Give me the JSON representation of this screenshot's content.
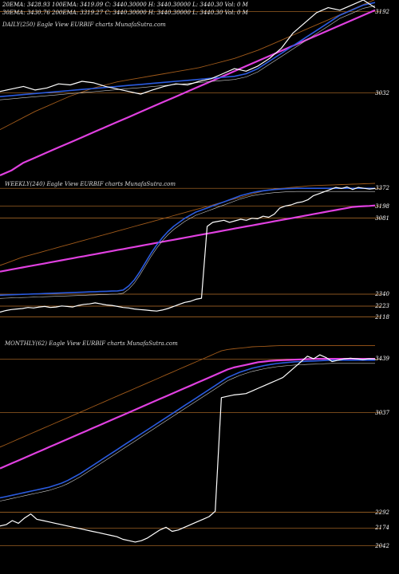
{
  "header": {
    "row1": "20EMA: 3428.93     100EMA: 3419.09     C: 3440.30000 H: 3440.30000 L: 3440.30 Vol: 0  M",
    "row2": "30EMA: 3430.76     200EMA: 3319.27     C: 3440.30000 H: 3440.30000 L: 3440.30 Vol: 0  M"
  },
  "colors": {
    "background": "#000000",
    "level_line": "#b8722a",
    "price_line": "#ffffff",
    "ema_pink": "#e040e0",
    "ema_blue": "#2a5be0",
    "ema_orange": "#a05a1a"
  },
  "chart_data": [
    {
      "type": "line",
      "panel": "daily",
      "title": "DAILY(250) Eagle  View  EURBIF charts MunafaSutra.com",
      "levels": [
        3192,
        3032
      ],
      "series": [
        {
          "role": "price",
          "values": [
            3035,
            3040,
            3045,
            3038,
            3042,
            3050,
            3048,
            3055,
            3052,
            3045,
            3040,
            3035,
            3030,
            3038,
            3045,
            3050,
            3048,
            3055,
            3060,
            3070,
            3080,
            3075,
            3085,
            3100,
            3120,
            3150,
            3170,
            3190,
            3200,
            3195,
            3205,
            3215,
            3200
          ]
        },
        {
          "role": "ema-pink",
          "values": [
            2870,
            2880,
            2895,
            2905,
            2915,
            2925,
            2935,
            2945,
            2955,
            2965,
            2975,
            2985,
            2995,
            3005,
            3015,
            3025,
            3035,
            3045,
            3055,
            3065,
            3075,
            3085,
            3095,
            3105,
            3115,
            3125,
            3135,
            3145,
            3155,
            3165,
            3175,
            3185,
            3195
          ]
        },
        {
          "role": "ema-blue",
          "values": [
            3025,
            3027,
            3029,
            3031,
            3033,
            3035,
            3037,
            3039,
            3041,
            3043,
            3045,
            3047,
            3049,
            3051,
            3053,
            3055,
            3057,
            3059,
            3061,
            3063,
            3065,
            3070,
            3080,
            3095,
            3110,
            3125,
            3140,
            3155,
            3170,
            3185,
            3195,
            3205,
            3210
          ]
        },
        {
          "role": "ema-orange",
          "values": [
            2960,
            2972,
            2984,
            2996,
            3006,
            3016,
            3026,
            3034,
            3042,
            3048,
            3054,
            3058,
            3062,
            3066,
            3070,
            3074,
            3078,
            3082,
            3088,
            3094,
            3100,
            3108,
            3116,
            3126,
            3136,
            3146,
            3156,
            3166,
            3176,
            3186,
            3196,
            3206,
            3216
          ]
        }
      ]
    },
    {
      "type": "line",
      "panel": "weekly",
      "title": "WEEKLY(240) Eagle  View  EURBIF charts MunafaSutra.com",
      "levels": [
        3372,
        3198,
        3081,
        2340,
        2223,
        2118
      ],
      "series": [
        {
          "role": "price",
          "values": [
            2165,
            2180,
            2190,
            2195,
            2200,
            2210,
            2205,
            2215,
            2220,
            2210,
            2215,
            2225,
            2220,
            2215,
            2230,
            2240,
            2245,
            2255,
            2245,
            2235,
            2230,
            2220,
            2210,
            2205,
            2195,
            2190,
            2185,
            2180,
            2175,
            2185,
            2200,
            2220,
            2240,
            2260,
            2270,
            2290,
            2300,
            3000,
            3040,
            3050,
            3060,
            3040,
            3055,
            3070,
            3060,
            3080,
            3075,
            3100,
            3090,
            3120,
            3180,
            3200,
            3210,
            3230,
            3240,
            3260,
            3300,
            3320,
            3340,
            3360,
            3380,
            3370,
            3385,
            3360,
            3380,
            3372,
            3365,
            3370
          ]
        },
        {
          "role": "ema-pink",
          "values": [
            2560,
            2570,
            2580,
            2590,
            2600,
            2610,
            2620,
            2630,
            2640,
            2650,
            2660,
            2670,
            2680,
            2690,
            2700,
            2710,
            2720,
            2730,
            2740,
            2750,
            2760,
            2770,
            2780,
            2790,
            2800,
            2810,
            2820,
            2830,
            2840,
            2850,
            2860,
            2870,
            2880,
            2890,
            2900,
            2910,
            2920,
            2930,
            2940,
            2950,
            2960,
            2970,
            2980,
            2990,
            3000,
            3010,
            3020,
            3030,
            3040,
            3050,
            3060,
            3070,
            3080,
            3090,
            3100,
            3110,
            3120,
            3130,
            3140,
            3150,
            3160,
            3170,
            3180,
            3190,
            3195,
            3198,
            3200,
            3205
          ]
        },
        {
          "role": "ema-blue",
          "values": [
            2330,
            2332,
            2334,
            2336,
            2338,
            2340,
            2342,
            2344,
            2346,
            2348,
            2350,
            2352,
            2354,
            2356,
            2358,
            2360,
            2362,
            2364,
            2366,
            2368,
            2370,
            2372,
            2380,
            2420,
            2480,
            2560,
            2650,
            2740,
            2820,
            2890,
            2950,
            3000,
            3040,
            3080,
            3110,
            3140,
            3160,
            3180,
            3200,
            3220,
            3240,
            3260,
            3280,
            3300,
            3315,
            3330,
            3340,
            3348,
            3355,
            3360,
            3364,
            3368,
            3370,
            3372,
            3372,
            3372,
            3372,
            3372,
            3372,
            3372,
            3372,
            3372,
            3372,
            3372,
            3372,
            3372,
            3372,
            3372
          ]
        },
        {
          "role": "ema-orange",
          "values": [
            2620,
            2640,
            2660,
            2680,
            2700,
            2715,
            2730,
            2745,
            2760,
            2775,
            2790,
            2805,
            2820,
            2835,
            2850,
            2865,
            2880,
            2895,
            2910,
            2925,
            2940,
            2955,
            2970,
            2985,
            3000,
            3015,
            3030,
            3045,
            3060,
            3075,
            3090,
            3105,
            3120,
            3135,
            3150,
            3165,
            3180,
            3195,
            3210,
            3225,
            3240,
            3255,
            3270,
            3285,
            3300,
            3315,
            3330,
            3345,
            3355,
            3365,
            3370,
            3375,
            3380,
            3385,
            3390,
            3395,
            3398,
            3400,
            3402,
            3404,
            3406,
            3408,
            3410,
            3412,
            3414,
            3416,
            3418,
            3420
          ]
        }
      ]
    },
    {
      "type": "line",
      "panel": "monthly",
      "title": "MONTHLY(62) Eagle  View  EURBIF charts MunafaSutra.com",
      "levels": [
        3439,
        3037,
        2292,
        2174,
        2042
      ],
      "series": [
        {
          "role": "price",
          "values": [
            2190,
            2200,
            2230,
            2210,
            2250,
            2280,
            2240,
            2230,
            2220,
            2210,
            2200,
            2190,
            2180,
            2170,
            2160,
            2150,
            2140,
            2130,
            2120,
            2110,
            2090,
            2080,
            2070,
            2080,
            2100,
            2130,
            2160,
            2180,
            2150,
            2160,
            2180,
            2200,
            2220,
            2240,
            2260,
            2300,
            3150,
            3160,
            3170,
            3175,
            3180,
            3200,
            3220,
            3240,
            3260,
            3280,
            3300,
            3340,
            3380,
            3420,
            3460,
            3440,
            3470,
            3450,
            3420,
            3430,
            3440,
            3445,
            3440,
            3435,
            3440,
            3439
          ]
        },
        {
          "role": "ema-pink",
          "values": [
            2620,
            2640,
            2660,
            2680,
            2700,
            2720,
            2740,
            2760,
            2780,
            2800,
            2820,
            2840,
            2860,
            2880,
            2900,
            2920,
            2940,
            2960,
            2980,
            3000,
            3020,
            3040,
            3060,
            3080,
            3100,
            3120,
            3140,
            3160,
            3180,
            3200,
            3220,
            3240,
            3260,
            3280,
            3300,
            3320,
            3340,
            3360,
            3375,
            3385,
            3395,
            3405,
            3415,
            3420,
            3425,
            3428,
            3430,
            3432,
            3434,
            3436,
            3438,
            3440,
            3440,
            3440,
            3440,
            3440,
            3440,
            3440,
            3440,
            3440,
            3440,
            3440
          ]
        },
        {
          "role": "ema-blue",
          "values": [
            2400,
            2410,
            2420,
            2430,
            2440,
            2450,
            2460,
            2470,
            2480,
            2495,
            2510,
            2530,
            2555,
            2580,
            2610,
            2640,
            2670,
            2700,
            2730,
            2760,
            2790,
            2820,
            2850,
            2880,
            2910,
            2940,
            2970,
            3000,
            3030,
            3060,
            3090,
            3120,
            3150,
            3180,
            3210,
            3240,
            3270,
            3300,
            3320,
            3340,
            3355,
            3370,
            3380,
            3390,
            3398,
            3405,
            3410,
            3414,
            3418,
            3420,
            3422,
            3424,
            3426,
            3428,
            3430,
            3430,
            3430,
            3430,
            3430,
            3430,
            3430,
            3430
          ]
        },
        {
          "role": "ema-orange",
          "values": [
            2780,
            2800,
            2820,
            2840,
            2860,
            2880,
            2900,
            2920,
            2940,
            2960,
            2980,
            3000,
            3020,
            3040,
            3060,
            3080,
            3100,
            3120,
            3140,
            3160,
            3180,
            3200,
            3220,
            3240,
            3260,
            3280,
            3300,
            3320,
            3340,
            3360,
            3380,
            3400,
            3420,
            3440,
            3460,
            3480,
            3500,
            3510,
            3515,
            3520,
            3525,
            3530,
            3532,
            3534,
            3536,
            3538,
            3540,
            3540,
            3540,
            3540,
            3540,
            3540,
            3540,
            3540,
            3540,
            3540,
            3540,
            3540,
            3540,
            3540,
            3540,
            3540
          ]
        }
      ]
    }
  ]
}
